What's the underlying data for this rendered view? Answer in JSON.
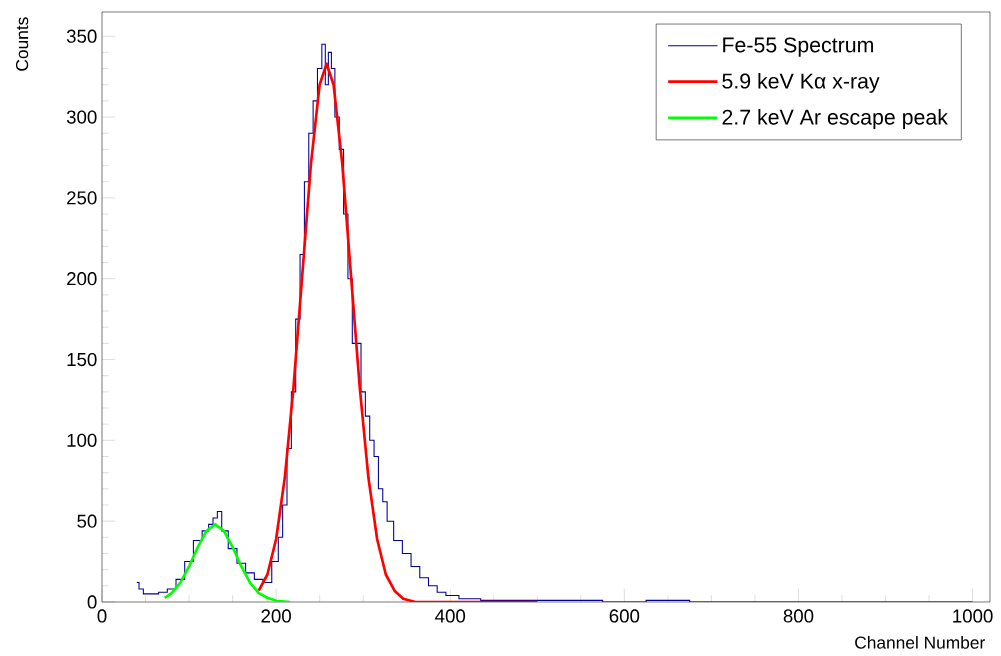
{
  "chart_data": {
    "type": "step",
    "xlabel": "Channel Number",
    "ylabel": "Counts",
    "xlim": [
      0,
      1020
    ],
    "ylim": [
      0,
      365
    ],
    "xticks": [
      0,
      200,
      400,
      600,
      800,
      1000
    ],
    "yticks": [
      0,
      50,
      100,
      150,
      200,
      250,
      300,
      350
    ],
    "grid": false,
    "legend": "top right",
    "marker": "none",
    "series": [
      {
        "name": "Fe-55 Spectrum",
        "color": "#000099",
        "x": [
          40,
          45,
          50,
          60,
          70,
          80,
          90,
          100,
          110,
          120,
          125,
          130,
          135,
          140,
          150,
          160,
          170,
          180,
          190,
          200,
          205,
          210,
          215,
          220,
          225,
          230,
          235,
          240,
          245,
          250,
          255,
          258,
          262,
          265,
          270,
          275,
          280,
          285,
          290,
          295,
          300,
          305,
          310,
          315,
          320,
          325,
          330,
          340,
          350,
          360,
          370,
          380,
          390,
          400,
          420,
          450,
          500,
          550,
          600,
          650,
          700,
          1000
        ],
        "values": [
          12,
          8,
          5,
          5,
          6,
          8,
          14,
          25,
          38,
          44,
          48,
          52,
          56,
          44,
          33,
          24,
          18,
          14,
          12,
          25,
          40,
          60,
          95,
          130,
          175,
          215,
          260,
          290,
          310,
          330,
          345,
          320,
          340,
          330,
          300,
          280,
          240,
          200,
          160,
          160,
          130,
          115,
          100,
          90,
          70,
          62,
          50,
          38,
          30,
          22,
          15,
          10,
          6,
          4,
          2,
          1,
          1,
          1,
          0,
          1,
          0,
          0
        ]
      },
      {
        "name": "5.9 keV Kα x-ray",
        "type": "line",
        "color": "#ff0000",
        "x": [
          180,
          190,
          200,
          210,
          220,
          230,
          240,
          250,
          258,
          266,
          276,
          286,
          296,
          306,
          316,
          326,
          336,
          346,
          360,
          500
        ],
        "values": [
          7,
          17,
          39,
          77,
          133,
          202,
          271,
          320,
          333,
          320,
          271,
          202,
          133,
          77,
          39,
          17,
          7,
          2,
          0,
          0
        ]
      },
      {
        "name": "2.7 keV Ar escape peak",
        "type": "line",
        "color": "#00ff00",
        "x": [
          72,
          80,
          90,
          100,
          110,
          120,
          130,
          140,
          150,
          160,
          170,
          180,
          190,
          200,
          216
        ],
        "values": [
          2.6,
          5.5,
          12,
          22,
          34,
          44,
          48,
          44,
          34,
          22,
          12,
          5.5,
          2.6,
          0.7,
          0
        ]
      }
    ]
  }
}
